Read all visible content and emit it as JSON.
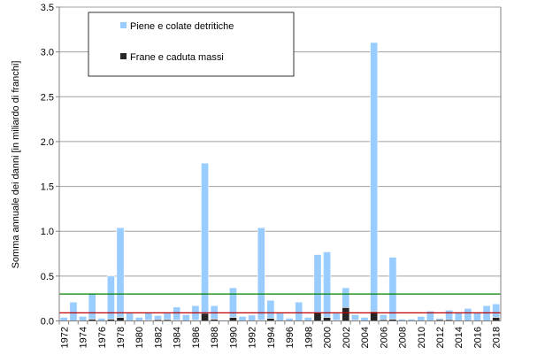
{
  "chart_data": {
    "type": "bar",
    "stacked": true,
    "title": "",
    "xlabel": "",
    "ylabel": "Somma annuale dei danni [in  miliardo di franchi]",
    "ylim": [
      0,
      3.5
    ],
    "yticks": [
      "0.0",
      "0.5",
      "1.0",
      "1.5",
      "2.0",
      "2.5",
      "3.0",
      "3.5"
    ],
    "grid": true,
    "legend_position": "top-left",
    "categories": [
      1972,
      1973,
      1974,
      1975,
      1976,
      1977,
      1978,
      1979,
      1980,
      1981,
      1982,
      1983,
      1984,
      1985,
      1986,
      1987,
      1988,
      1989,
      1990,
      1991,
      1992,
      1993,
      1994,
      1995,
      1996,
      1997,
      1998,
      1999,
      2000,
      2001,
      2002,
      2003,
      2004,
      2005,
      2006,
      2007,
      2008,
      2009,
      2010,
      2011,
      2012,
      2013,
      2014,
      2015,
      2016,
      2017,
      2018
    ],
    "xtick_labels": [
      "1972",
      "1974",
      "1976",
      "1978",
      "1980",
      "1982",
      "1984",
      "1986",
      "1988",
      "1990",
      "1992",
      "1994",
      "1996",
      "1998",
      "2000",
      "2002",
      "2004",
      "2006",
      "2008",
      "2010",
      "2012",
      "2014",
      "2016",
      "2018"
    ],
    "series": [
      {
        "name": "Frane e caduta massi",
        "color": "#262626",
        "values": [
          0,
          0,
          0,
          0.02,
          0,
          0.02,
          0.04,
          0,
          0,
          0.01,
          0.015,
          0.015,
          0.01,
          0,
          0.01,
          0.085,
          0.02,
          0,
          0.04,
          0,
          0,
          0.01,
          0.03,
          0,
          0,
          0,
          0,
          0.09,
          0.04,
          0.01,
          0.15,
          0.01,
          0,
          0.105,
          0.015,
          0.02,
          0,
          0,
          0,
          0,
          0.015,
          0.015,
          0,
          0,
          0,
          0,
          0.04
        ]
      },
      {
        "name": "Piene e colate detritiche",
        "color": "#99CCFF",
        "values": [
          0.04,
          0.21,
          0.05,
          0.29,
          0.03,
          0.48,
          1.0,
          0.085,
          0.04,
          0.08,
          0.045,
          0.07,
          0.145,
          0.07,
          0.16,
          1.675,
          0.15,
          0.01,
          0.33,
          0.05,
          0.065,
          1.03,
          0.2,
          0.085,
          0.03,
          0.21,
          0.04,
          0.65,
          0.73,
          0.075,
          0.22,
          0.06,
          0.04,
          3.0,
          0.055,
          0.69,
          0.02,
          0.02,
          0.05,
          0.11,
          0.015,
          0.105,
          0.09,
          0.14,
          0.09,
          0.17,
          0.15
        ]
      }
    ],
    "reference_lines": [
      {
        "value": 0.3,
        "color": "#008000"
      },
      {
        "value": 0.09,
        "color": "#C00000"
      }
    ]
  }
}
